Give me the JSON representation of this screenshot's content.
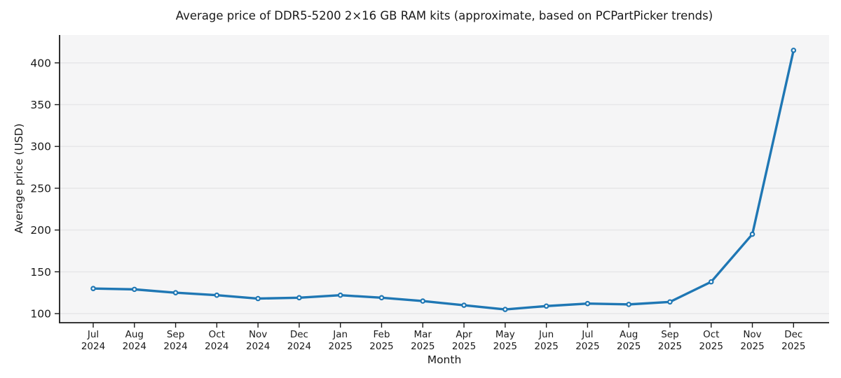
{
  "chart_data": {
    "type": "line",
    "title": "Average price of DDR5-5200 2×16 GB RAM kits (approximate, based on PCPartPicker trends)",
    "xlabel": "Month",
    "ylabel": "Average price (USD)",
    "categories": [
      "Jul 2024",
      "Aug 2024",
      "Sep 2024",
      "Oct 2024",
      "Nov 2024",
      "Dec 2024",
      "Jan 2025",
      "Feb 2025",
      "Mar 2025",
      "Apr 2025",
      "May 2025",
      "Jun 2025",
      "Jul 2025",
      "Aug 2025",
      "Sep 2025",
      "Oct 2025",
      "Nov 2025",
      "Dec 2025"
    ],
    "series": [
      {
        "name": "Average price (USD)",
        "values": [
          130,
          129,
          125,
          122,
          118,
          119,
          122,
          119,
          115,
          110,
          105,
          109,
          112,
          111,
          114,
          138,
          195,
          415
        ]
      }
    ],
    "yticks": [
      100,
      150,
      200,
      250,
      300,
      350,
      400
    ],
    "ylim": [
      89,
      433
    ],
    "grid": "horizontal",
    "legend": "none",
    "marker": "open-circle",
    "colors": {
      "line": "#1f77b4",
      "marker_fill": "#ffffff",
      "plot_background": "#f5f5f6",
      "grid": "#e7e7e9",
      "axis": "#1a1a1a",
      "text": "#1a1a1a"
    }
  }
}
